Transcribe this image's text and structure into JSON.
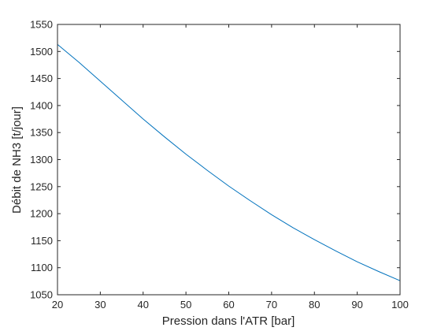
{
  "chart_data": {
    "type": "line",
    "xlabel": "Pression dans l'ATR [bar]",
    "ylabel": "Débit de NH3 [t/jour]",
    "xlim": [
      20,
      100
    ],
    "ylim": [
      1050,
      1550
    ],
    "xticks": [
      20,
      30,
      40,
      50,
      60,
      70,
      80,
      90,
      100
    ],
    "yticks": [
      1050,
      1100,
      1150,
      1200,
      1250,
      1300,
      1350,
      1400,
      1450,
      1500,
      1550
    ],
    "grid": false,
    "legend": "none",
    "series": [
      {
        "color": "#0072bd",
        "x": [
          20,
          25,
          30,
          35,
          40,
          45,
          50,
          55,
          60,
          65,
          70,
          75,
          80,
          85,
          90,
          95,
          100
        ],
        "y": [
          1513,
          1480,
          1445,
          1410,
          1375,
          1342,
          1310,
          1280,
          1251,
          1224,
          1198,
          1174,
          1152,
          1131,
          1111,
          1093,
          1076
        ]
      }
    ]
  }
}
